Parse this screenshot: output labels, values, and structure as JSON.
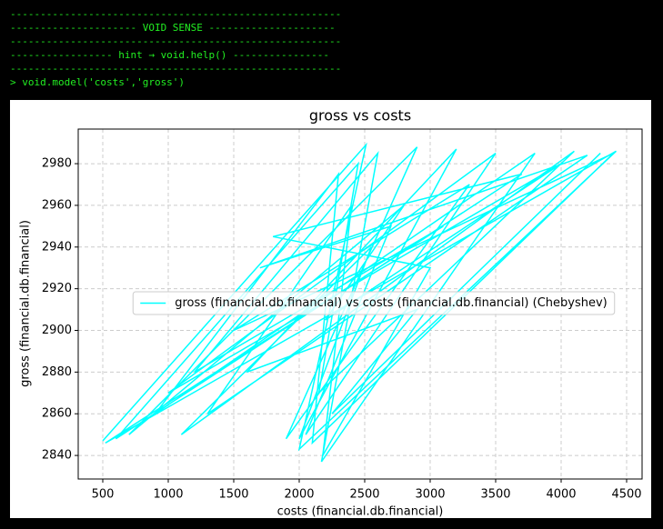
{
  "terminal": {
    "lines": [
      "-------------------------------------------------------",
      "--------------------- VOID SENSE ---------------------",
      "-------------------------------------------------------",
      "----------------- hint → void.help() ----------------",
      "-------------------------------------------------------",
      "> void.model('costs','gross')"
    ]
  },
  "chart_data": {
    "type": "line",
    "title": "gross vs costs",
    "x_label": "costs (financial.db.financial)",
    "y_label": "gross (financial.db.financial)",
    "x": [
      500,
      2510,
      2000,
      4420,
      520,
      3100,
      1200,
      2600,
      2170,
      3800,
      900,
      2300,
      2100,
      4400,
      1500,
      3300,
      1900,
      2900,
      700,
      2800,
      2200,
      4000,
      1000,
      3500,
      2050,
      2700,
      1700,
      4200,
      1300,
      2400,
      2180,
      3000,
      1800,
      3700,
      600,
      2450,
      2150,
      4100,
      1100,
      2550,
      2000,
      3200,
      1600,
      2900,
      2250,
      4300
    ],
    "series": [
      {
        "name": "gross (financial.db.financial) vs costs (financial.db.financial) (Chebyshev)",
        "color": "#00ffff",
        "values": [
          2847,
          2989,
          2843,
          2986,
          2846,
          2950,
          2880,
          2985,
          2837,
          2985,
          2860,
          2975,
          2846,
          2985,
          2900,
          2970,
          2848,
          2988,
          2850,
          2960,
          2905,
          2980,
          2870,
          2985,
          2850,
          2950,
          2930,
          2984,
          2860,
          2960,
          2840,
          2930,
          2945,
          2975,
          2848,
          2980,
          2870,
          2986,
          2850,
          2940,
          2848,
          2987,
          2880,
          2910,
          2860,
          2985
        ]
      }
    ],
    "xlim": [
      312.5,
      4618
    ],
    "ylim": [
      2828.7,
      2996.6
    ],
    "xticks": [
      500,
      1000,
      1500,
      2000,
      2500,
      3000,
      3500,
      4000,
      4500
    ],
    "yticks": [
      2840,
      2860,
      2880,
      2900,
      2920,
      2940,
      2960,
      2980
    ],
    "grid": true,
    "legend": "center"
  }
}
